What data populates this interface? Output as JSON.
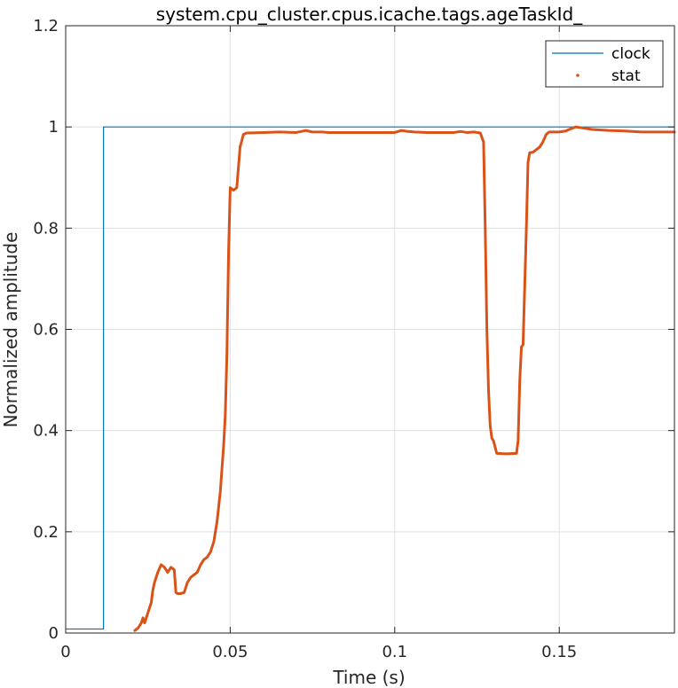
{
  "chart_data": {
    "type": "line",
    "title": "system.cpu_cluster.cpus.icache.tags.ageTaskId_",
    "xlabel": "Time (s)",
    "ylabel": "Normalized amplitude",
    "xlim": [
      0,
      0.185
    ],
    "ylim": [
      0,
      1.2
    ],
    "xticks": [
      0,
      0.05,
      0.1,
      0.15
    ],
    "xtick_labels": [
      "0",
      "0.05",
      "0.1",
      "0.15"
    ],
    "yticks": [
      0,
      0.2,
      0.4,
      0.6,
      0.8,
      1,
      1.2
    ],
    "ytick_labels": [
      "0",
      "0.2",
      "0.4",
      "0.6",
      "0.8",
      "1",
      "1.2"
    ],
    "grid": true,
    "legend_position": "top-right",
    "series": [
      {
        "name": "clock",
        "color": "#0072BD",
        "x": [
          0,
          0.0115,
          0.0115,
          0.185
        ],
        "y": [
          0.008,
          0.008,
          1.0,
          1.0
        ]
      },
      {
        "name": "stat",
        "color": "#D95319",
        "x": [
          0.021,
          0.022,
          0.023,
          0.0235,
          0.024,
          0.025,
          0.0255,
          0.026,
          0.0265,
          0.027,
          0.028,
          0.029,
          0.03,
          0.031,
          0.032,
          0.033,
          0.0335,
          0.034,
          0.035,
          0.036,
          0.037,
          0.038,
          0.039,
          0.04,
          0.041,
          0.042,
          0.043,
          0.044,
          0.045,
          0.046,
          0.047,
          0.048,
          0.0485,
          0.049,
          0.0495,
          0.05,
          0.051,
          0.052,
          0.053,
          0.054,
          0.055,
          0.06,
          0.065,
          0.07,
          0.073,
          0.075,
          0.078,
          0.08,
          0.09,
          0.1,
          0.102,
          0.104,
          0.106,
          0.11,
          0.118,
          0.12,
          0.122,
          0.124,
          0.126,
          0.127,
          0.1275,
          0.128,
          0.1285,
          0.129,
          0.1295,
          0.13,
          0.131,
          0.134,
          0.137,
          0.1375,
          0.138,
          0.1385,
          0.139,
          0.14,
          0.1405,
          0.141,
          0.142,
          0.144,
          0.145,
          0.146,
          0.1465,
          0.147,
          0.15,
          0.152,
          0.153,
          0.155,
          0.157,
          0.16,
          0.165,
          0.17,
          0.175,
          0.178,
          0.18,
          0.185
        ],
        "y": [
          0.005,
          0.01,
          0.02,
          0.03,
          0.02,
          0.04,
          0.05,
          0.06,
          0.085,
          0.1,
          0.12,
          0.135,
          0.13,
          0.12,
          0.13,
          0.125,
          0.08,
          0.078,
          0.078,
          0.08,
          0.1,
          0.11,
          0.115,
          0.12,
          0.135,
          0.145,
          0.15,
          0.16,
          0.18,
          0.22,
          0.28,
          0.37,
          0.43,
          0.55,
          0.75,
          0.88,
          0.875,
          0.88,
          0.96,
          0.985,
          0.988,
          0.989,
          0.99,
          0.989,
          0.993,
          0.99,
          0.99,
          0.989,
          0.989,
          0.989,
          0.993,
          0.991,
          0.99,
          0.989,
          0.989,
          0.991,
          0.989,
          0.99,
          0.988,
          0.97,
          0.8,
          0.6,
          0.48,
          0.41,
          0.385,
          0.38,
          0.355,
          0.354,
          0.355,
          0.38,
          0.5,
          0.565,
          0.57,
          0.8,
          0.93,
          0.949,
          0.95,
          0.96,
          0.97,
          0.985,
          0.988,
          0.99,
          0.99,
          0.992,
          0.995,
          1.0,
          0.998,
          0.995,
          0.993,
          0.992,
          0.99,
          0.99,
          0.99,
          0.99
        ]
      }
    ]
  }
}
